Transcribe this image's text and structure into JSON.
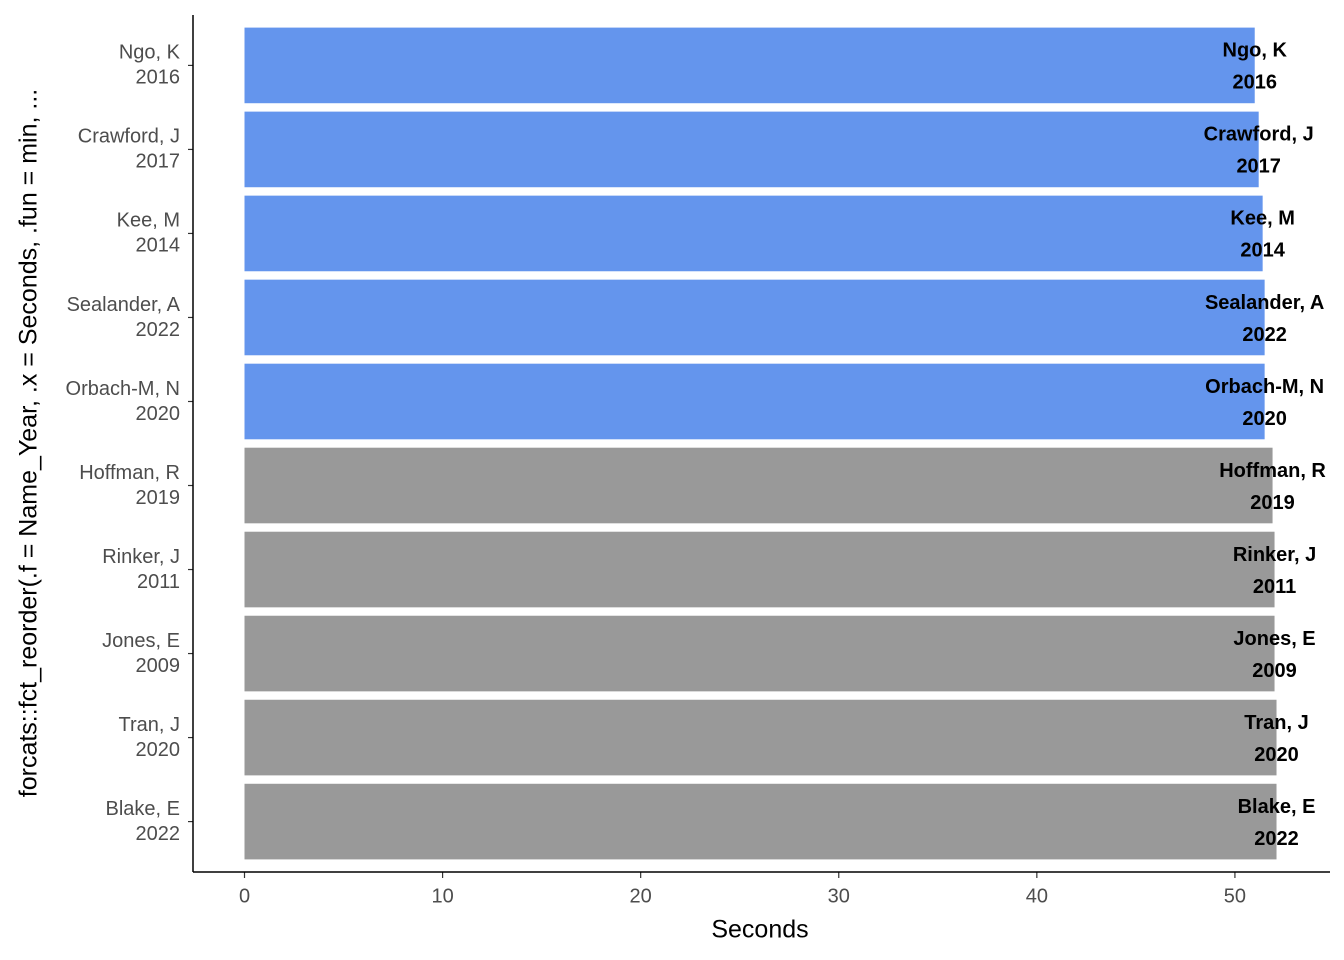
{
  "chart_data": {
    "type": "bar",
    "orientation": "horizontal",
    "x_label": "Seconds",
    "y_label": "forcats::fct_reorder(.f = Name_Year, .x = Seconds, .fun = min, ...",
    "categories": [
      "Ngo, K",
      "Crawford, J",
      "Kee, M",
      "Sealander, A",
      "Orbach-M, N",
      "Hoffman, R",
      "Rinker, J",
      "Jones, E",
      "Tran, J",
      "Blake, E"
    ],
    "years": [
      "2016",
      "2017",
      "2014",
      "2022",
      "2020",
      "2019",
      "2011",
      "2009",
      "2020",
      "2022"
    ],
    "values": [
      51.0,
      51.2,
      51.4,
      51.5,
      51.5,
      51.9,
      52.0,
      52.0,
      52.1,
      52.1
    ],
    "colors": [
      "#6495ed",
      "#6495ed",
      "#6495ed",
      "#6495ed",
      "#6495ed",
      "#999999",
      "#999999",
      "#999999",
      "#999999",
      "#999999"
    ],
    "xlim": [
      -2.6,
      54.8
    ],
    "xticks": [
      0,
      10,
      20,
      30,
      40,
      50
    ],
    "grid": false
  }
}
